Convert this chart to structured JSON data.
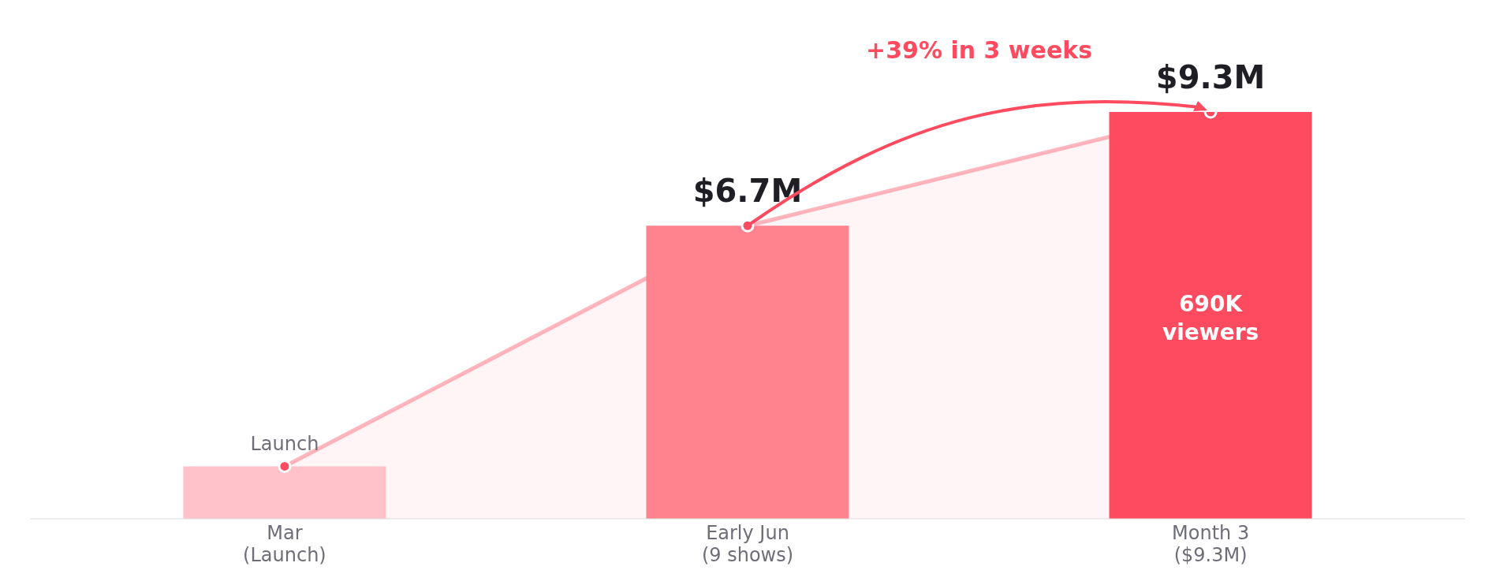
{
  "chart_data": {
    "type": "bar",
    "categories": [
      "Mar\n(Launch)",
      "Early Jun\n(9 shows)",
      "Month 3\n($9.3M)"
    ],
    "series": [
      {
        "values": [
          1.2,
          6.7,
          9.3
        ],
        "colors": [
          "#ffc2ca",
          "#ff838e",
          "#ff4b5f"
        ],
        "value_labels": [
          null,
          "$6.7M",
          "$9.3M"
        ]
      },
      {
        "type": "area",
        "color": "#ff4b5f",
        "values": [
          1.2,
          6.7,
          9.3
        ]
      }
    ],
    "marker": "circle",
    "annotations": [
      {
        "text": "Launch",
        "x": "Mar\n(Launch)",
        "y": 1.2
      },
      {
        "text": "690K\nviewers",
        "x": "Month 3\n($9.3M)",
        "y": 4.6
      },
      "+39% in 3 weeks"
    ]
  }
}
